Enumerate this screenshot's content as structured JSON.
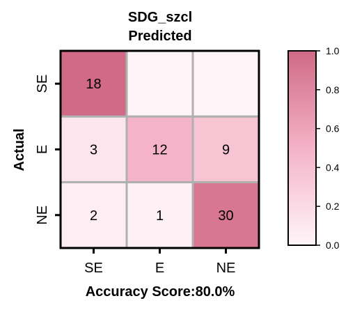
{
  "chart_data": {
    "type": "heatmap",
    "title": "SDG_szcl",
    "subtitle": "Predicted",
    "xlabel": "Accuracy Score:80.0%",
    "ylabel": "Actual",
    "x_categories": [
      "SE",
      "E",
      "NE"
    ],
    "y_categories": [
      "SE",
      "E",
      "NE"
    ],
    "values": [
      [
        18,
        null,
        null
      ],
      [
        3,
        12,
        9
      ],
      [
        2,
        1,
        30
      ]
    ],
    "normalized": [
      [
        1.0,
        0.0,
        0.0
      ],
      [
        0.125,
        0.5,
        0.375
      ],
      [
        0.0606,
        0.0303,
        0.9091
      ]
    ],
    "colorbar": {
      "range": [
        0.0,
        1.0
      ],
      "ticks": [
        "0.0",
        "0.2",
        "0.4",
        "0.6",
        "0.8",
        "1.0"
      ],
      "color_low": "#fff5f8",
      "color_mid": "#f4b3c8",
      "color_high": "#d06a86"
    },
    "grid_color": "#b0b0b0"
  }
}
